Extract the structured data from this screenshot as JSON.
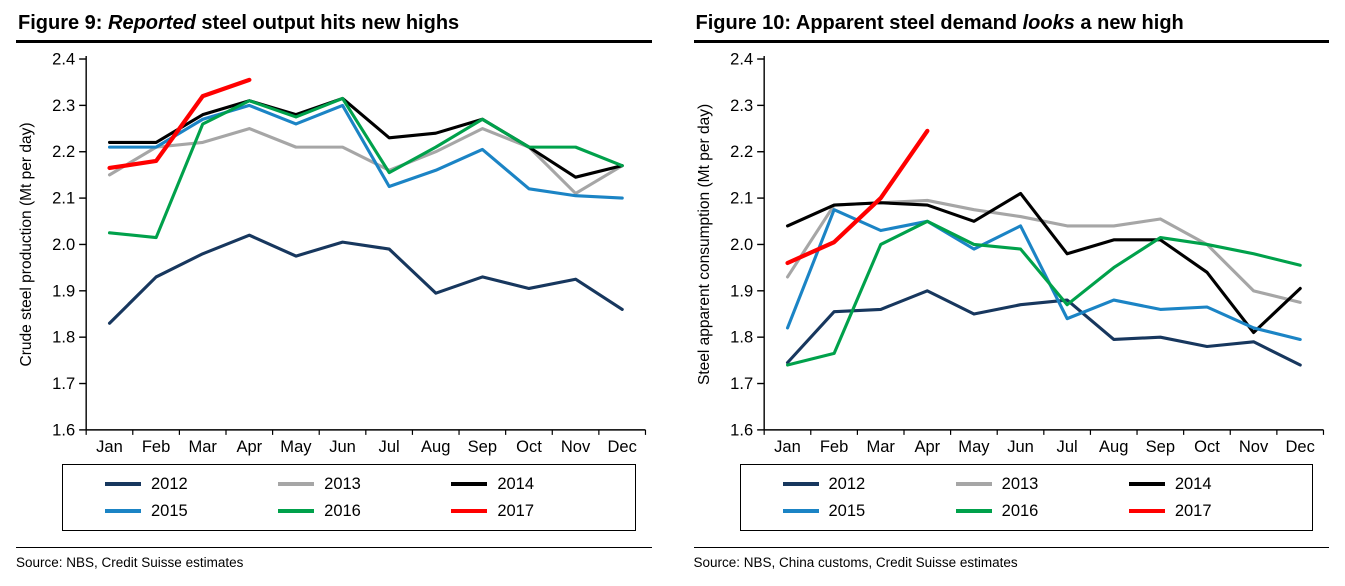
{
  "figures": [
    {
      "title_parts": [
        {
          "text": "Figure 9: ",
          "italic": false
        },
        {
          "text": "Reported",
          "italic": true
        },
        {
          "text": " steel output hits new highs",
          "italic": false
        }
      ],
      "source": "Source: NBS, Credit Suisse estimates"
    },
    {
      "title_parts": [
        {
          "text": "Figure 10: Apparent steel demand ",
          "italic": false
        },
        {
          "text": "looks",
          "italic": true
        },
        {
          "text": " a new high",
          "italic": false
        }
      ],
      "source": "Source: NBS, China customs, Credit Suisse estimates"
    }
  ],
  "chart_data": [
    {
      "type": "line",
      "title": "Figure 9: Reported steel output hits new highs",
      "x": [
        "Jan",
        "Feb",
        "Mar",
        "Apr",
        "May",
        "Jun",
        "Jul",
        "Aug",
        "Sep",
        "Oct",
        "Nov",
        "Dec"
      ],
      "xlabel": "",
      "ylabel": "Crude steel production (Mt per day)",
      "ylim": [
        1.6,
        2.4
      ],
      "ytick_step": 0.1,
      "grid": false,
      "legend_position": "bottom",
      "series": [
        {
          "name": "2012",
          "color": "#17375E",
          "values": [
            1.83,
            1.93,
            1.98,
            2.02,
            1.975,
            2.005,
            1.99,
            1.895,
            1.93,
            1.905,
            1.925,
            1.86
          ]
        },
        {
          "name": "2013",
          "color": "#A6A6A6",
          "values": [
            2.15,
            2.21,
            2.22,
            2.25,
            2.21,
            2.21,
            2.16,
            2.2,
            2.25,
            2.21,
            2.11,
            2.17
          ]
        },
        {
          "name": "2014",
          "color": "#000000",
          "values": [
            2.22,
            2.22,
            2.28,
            2.31,
            2.28,
            2.315,
            2.23,
            2.24,
            2.27,
            2.21,
            2.145,
            2.17
          ]
        },
        {
          "name": "2015",
          "color": "#1B84C5",
          "values": [
            2.21,
            2.21,
            2.27,
            2.3,
            2.26,
            2.3,
            2.125,
            2.16,
            2.205,
            2.12,
            2.105,
            2.1
          ]
        },
        {
          "name": "2016",
          "color": "#00A14B",
          "values": [
            2.025,
            2.015,
            2.26,
            2.31,
            2.275,
            2.315,
            2.155,
            2.21,
            2.27,
            2.21,
            2.21,
            2.17
          ]
        },
        {
          "name": "2017",
          "color": "#FF0000",
          "values": [
            2.165,
            2.18,
            2.32,
            2.355,
            null,
            null,
            null,
            null,
            null,
            null,
            null,
            null
          ]
        }
      ]
    },
    {
      "type": "line",
      "title": "Figure 10: Apparent steel demand looks a new high",
      "x": [
        "Jan",
        "Feb",
        "Mar",
        "Apr",
        "May",
        "Jun",
        "Jul",
        "Aug",
        "Sep",
        "Oct",
        "Nov",
        "Dec"
      ],
      "xlabel": "",
      "ylabel": "Steel apparent consumption (Mt per day)",
      "ylim": [
        1.6,
        2.4
      ],
      "ytick_step": 0.1,
      "grid": false,
      "legend_position": "bottom",
      "series": [
        {
          "name": "2012",
          "color": "#17375E",
          "values": [
            1.745,
            1.855,
            1.86,
            1.9,
            1.85,
            1.87,
            1.88,
            1.795,
            1.8,
            1.78,
            1.79,
            1.74
          ]
        },
        {
          "name": "2013",
          "color": "#A6A6A6",
          "values": [
            1.93,
            2.085,
            2.09,
            2.095,
            2.075,
            2.06,
            2.04,
            2.04,
            2.055,
            2.0,
            1.9,
            1.875
          ]
        },
        {
          "name": "2014",
          "color": "#000000",
          "values": [
            2.04,
            2.085,
            2.09,
            2.085,
            2.05,
            2.11,
            1.98,
            2.01,
            2.01,
            1.94,
            1.81,
            1.905
          ]
        },
        {
          "name": "2015",
          "color": "#1B84C5",
          "values": [
            1.82,
            2.075,
            2.03,
            2.05,
            1.99,
            2.04,
            1.84,
            1.88,
            1.86,
            1.865,
            1.82,
            1.795
          ]
        },
        {
          "name": "2016",
          "color": "#00A14B",
          "values": [
            1.74,
            1.765,
            2.0,
            2.05,
            2.0,
            1.99,
            1.87,
            1.95,
            2.015,
            2.0,
            1.98,
            1.955
          ]
        },
        {
          "name": "2017",
          "color": "#FF0000",
          "values": [
            1.96,
            2.005,
            2.1,
            2.245,
            null,
            null,
            null,
            null,
            null,
            null,
            null,
            null
          ]
        }
      ]
    }
  ]
}
